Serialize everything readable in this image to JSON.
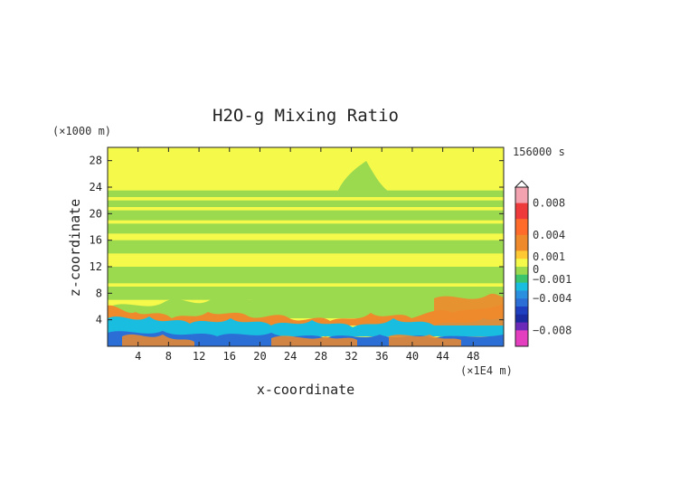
{
  "chart_data": {
    "type": "heatmap",
    "title": "H2O-g Mixing Ratio",
    "xlabel": "x-coordinate",
    "ylabel": "z-coordinate",
    "x_unit": "(×1E4 m)",
    "y_unit": "(×1000 m)",
    "time_label": "156000 s",
    "xlim": [
      0,
      52
    ],
    "ylim": [
      0,
      30
    ],
    "x_ticks": [
      "4",
      "8",
      "12",
      "16",
      "20",
      "24",
      "28",
      "32",
      "36",
      "40",
      "44",
      "48"
    ],
    "y_ticks": [
      "4",
      "8",
      "12",
      "16",
      "20",
      "24",
      "28"
    ],
    "colorbar": {
      "range": [
        -0.01,
        0.01
      ],
      "tick_labels": [
        "0.008",
        "0.004",
        "0.001",
        "0",
        "−0.001",
        "−0.004",
        "−0.008"
      ],
      "tick_values": [
        0.008,
        0.004,
        0.001,
        0,
        -0.001,
        -0.004,
        -0.008
      ]
    },
    "field_bands": [
      {
        "z_range": [
          24,
          30
        ],
        "value": 0.0002
      },
      {
        "z_range": [
          22.5,
          23.5
        ],
        "value": -0.0006
      },
      {
        "z_range": [
          21,
          22
        ],
        "value": -0.0006
      },
      {
        "z_range": [
          19,
          20.5
        ],
        "value": -0.0006
      },
      {
        "z_range": [
          17,
          18.5
        ],
        "value": -0.0006
      },
      {
        "z_range": [
          14,
          16
        ],
        "value": -0.0006
      },
      {
        "z_range": [
          9.5,
          12
        ],
        "value": -0.0006
      },
      {
        "z_range": [
          7,
          9
        ],
        "value": -0.0006
      },
      {
        "z_range": [
          4,
          7
        ],
        "value": 0.0015
      },
      {
        "z_range": [
          2,
          4
        ],
        "value": -0.0025
      },
      {
        "z_range": [
          0,
          2
        ],
        "value": -0.0045
      }
    ]
  },
  "colors": {
    "background_field": "#f4f94a",
    "band_light_green": "#9bd94f",
    "orange": "#ee8a2c",
    "cyan": "#19bde0",
    "blue": "#2b6fd6"
  }
}
